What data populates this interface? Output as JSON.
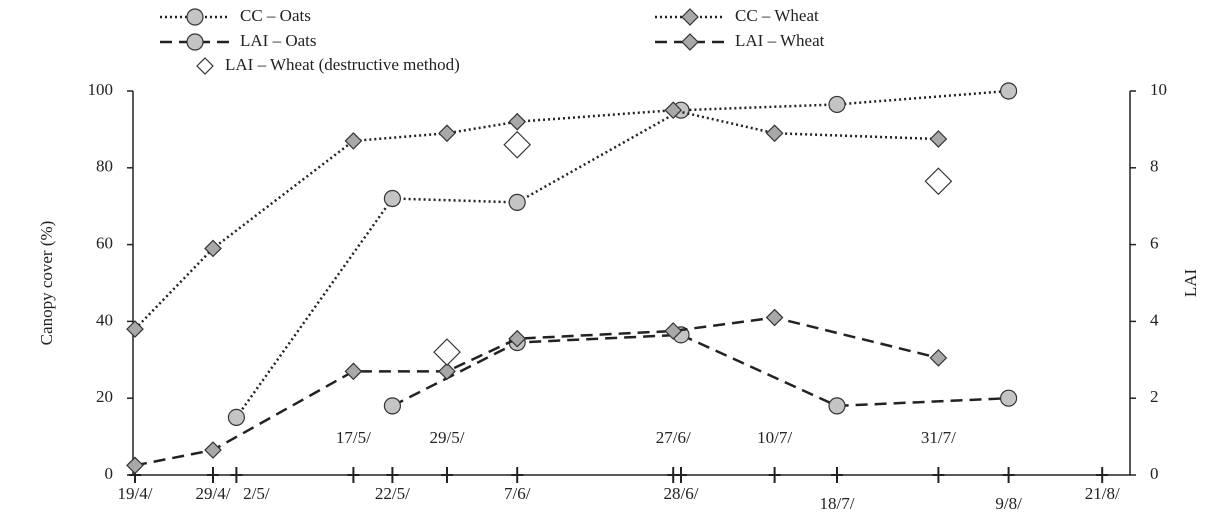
{
  "chart_data": {
    "type": "line",
    "ylabel": "Canopy cover  (%)",
    "y2label": "LAI",
    "ylim": [
      0,
      100
    ],
    "yticks": [
      0,
      20,
      40,
      60,
      80,
      100
    ],
    "y2lim": [
      0,
      10
    ],
    "y2ticks": [
      0,
      2,
      4,
      6,
      8,
      10
    ],
    "xticks": [
      "19/4/",
      "29/4/",
      "2/5/",
      "17/5/",
      "22/5/",
      "29/5/",
      "7/6/",
      "27/6/",
      "28/6/",
      "10/7/",
      "18/7/",
      "31/7/",
      "9/8/",
      "21/8/"
    ],
    "series": [
      {
        "name": "CC – Oats",
        "color": "#c4c4c4",
        "marker": "circle",
        "line": "dotted",
        "x": [
          "2/5/",
          "22/5/",
          "7/6/",
          "28/6/",
          "18/7/",
          "9/8/"
        ],
        "values": [
          15,
          72,
          71,
          95,
          96.5,
          100
        ]
      },
      {
        "name": "CC – Wheat",
        "color": "#a8a8a8",
        "marker": "diamond",
        "line": "dotted",
        "x": [
          "19/4/",
          "29/4/",
          "17/5/",
          "29/5/",
          "7/6/",
          "27/6/",
          "10/7/",
          "31/7/"
        ],
        "values": [
          38,
          59,
          87,
          89,
          92,
          95,
          89,
          87.5
        ]
      },
      {
        "name": "LAI – Oats",
        "color": "#c4c4c4",
        "marker": "circle",
        "line": "dashed",
        "axis": "y2",
        "x": [
          "22/5/",
          "7/6/",
          "28/6/",
          "18/7/",
          "9/8/"
        ],
        "values": [
          1.8,
          3.45,
          3.65,
          1.8,
          2.0
        ]
      },
      {
        "name": "LAI – Wheat",
        "color": "#a8a8a8",
        "marker": "diamond",
        "line": "dashed",
        "axis": "y2",
        "x": [
          "19/4/",
          "29/4/",
          "17/5/",
          "29/5/",
          "7/6/",
          "27/6/",
          "10/7/",
          "31/7/"
        ],
        "values": [
          0.25,
          0.65,
          2.7,
          2.7,
          3.55,
          3.75,
          4.1,
          3.05
        ]
      },
      {
        "name": "LAI – Wheat (destructive method)",
        "color": "#ffffff",
        "marker": "open-diamond",
        "line": "none",
        "axis": "y2",
        "x": [
          "29/5/",
          "7/6/",
          "31/7/"
        ],
        "values": [
          3.2,
          8.6,
          7.65
        ]
      }
    ]
  }
}
